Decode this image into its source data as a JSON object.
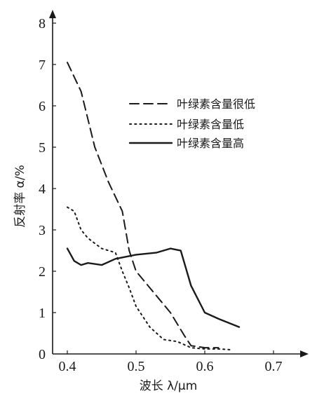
{
  "chart_data": {
    "type": "line",
    "xlabel": "波长 λ/μm",
    "ylabel": "反射率 α/%",
    "xlim": [
      0.38,
      0.75
    ],
    "ylim": [
      0,
      8
    ],
    "x_ticks": [
      "0.4",
      "0.5",
      "0.6",
      "0.7"
    ],
    "y_ticks": [
      "0",
      "1",
      "2",
      "3",
      "4",
      "5",
      "6",
      "7",
      "8"
    ],
    "grid": false,
    "legend_position": "top-right",
    "series": [
      {
        "name": "叶绿素含量很低",
        "style": "dashed",
        "x": [
          0.4,
          0.42,
          0.44,
          0.46,
          0.48,
          0.49,
          0.5,
          0.52,
          0.55,
          0.57,
          0.58,
          0.6,
          0.62
        ],
        "y": [
          7.05,
          6.35,
          5.0,
          4.15,
          3.45,
          2.5,
          2.0,
          1.6,
          1.0,
          0.45,
          0.2,
          0.15,
          0.15
        ]
      },
      {
        "name": "叶绿素含量低",
        "style": "dotted",
        "x": [
          0.4,
          0.41,
          0.42,
          0.43,
          0.45,
          0.47,
          0.48,
          0.49,
          0.5,
          0.52,
          0.54,
          0.56,
          0.58,
          0.6,
          0.62,
          0.64
        ],
        "y": [
          3.55,
          3.45,
          3.0,
          2.8,
          2.55,
          2.45,
          2.0,
          1.6,
          1.15,
          0.65,
          0.35,
          0.3,
          0.15,
          0.12,
          0.12,
          0.1
        ]
      },
      {
        "name": "叶绿素含量高",
        "style": "solid",
        "x": [
          0.4,
          0.41,
          0.42,
          0.43,
          0.45,
          0.47,
          0.5,
          0.53,
          0.55,
          0.565,
          0.58,
          0.6,
          0.62,
          0.65
        ],
        "y": [
          2.55,
          2.25,
          2.15,
          2.2,
          2.15,
          2.3,
          2.4,
          2.45,
          2.55,
          2.5,
          1.65,
          1.0,
          0.85,
          0.65
        ]
      }
    ]
  }
}
